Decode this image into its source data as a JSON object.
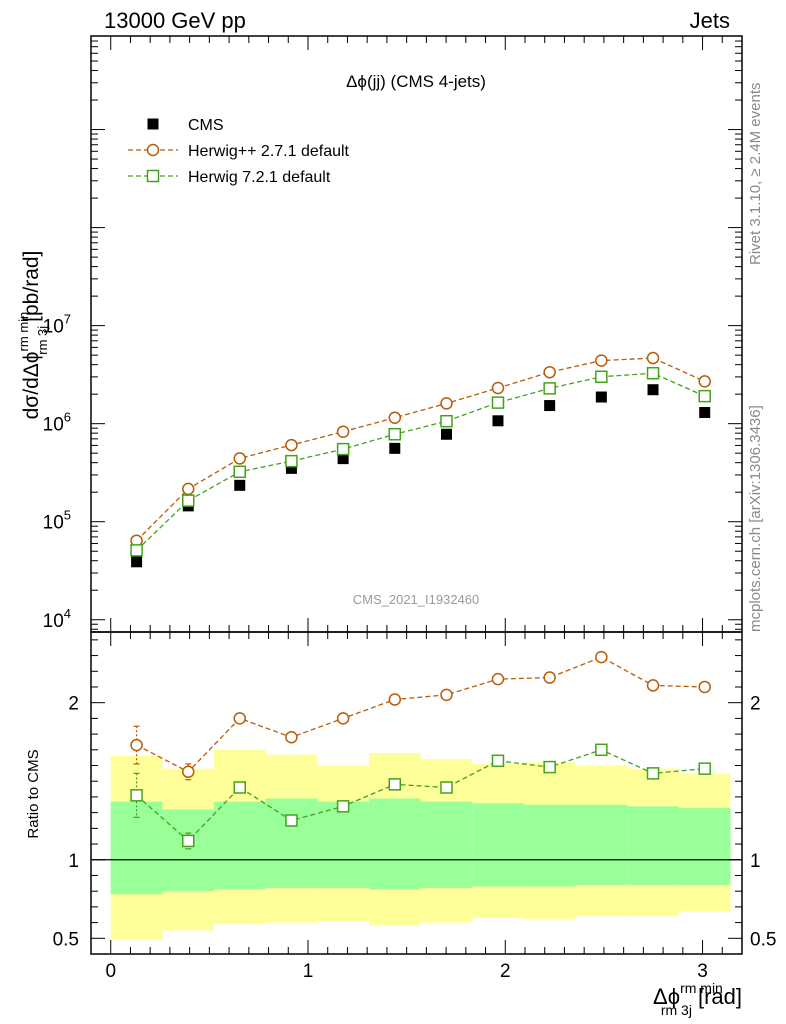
{
  "header": {
    "left": "13000 GeV pp",
    "right": "Jets"
  },
  "side_labels": {
    "rivet": "Rivet 3.1.10, ≥ 2.4M events",
    "mcplots": "mcplots.cern.ch [arXiv:1306.3436]"
  },
  "chart_data": [
    {
      "type": "scatter",
      "title": "Δϕ(jj) (CMS 4-jets)",
      "watermark": "CMS_2021_I1932460",
      "ylabel": {
        "main": "dσ/dΔϕ",
        "sup": "rm min",
        "sub": "rm 3j",
        "unit": "[pb/rad]"
      },
      "yscale": "log",
      "xlim": [
        -0.1,
        3.2
      ],
      "ylim": [
        7500,
        9000000000
      ],
      "yticks": [
        {
          "value": 10000,
          "mantissa": "10",
          "exp": "4"
        },
        {
          "value": 100000,
          "mantissa": "10",
          "exp": "5"
        },
        {
          "value": 1000000,
          "mantissa": "10",
          "exp": "6"
        },
        {
          "value": 10000000,
          "mantissa": "10",
          "exp": "7"
        }
      ],
      "legend_position": "top-left",
      "x": [
        0.131,
        0.393,
        0.654,
        0.916,
        1.178,
        1.44,
        1.702,
        1.963,
        2.225,
        2.487,
        2.749,
        3.011
      ],
      "series": [
        {
          "name": "CMS",
          "marker": "square-filled",
          "color": "#000000",
          "values": [
            39000,
            145000,
            235000,
            350000,
            440000,
            560000,
            780000,
            1070000,
            1530000,
            1870000,
            2220000,
            1300000
          ]
        },
        {
          "name": "Herwig++ 2.7.1 default",
          "marker": "circle-open",
          "color": "#b85c0a",
          "values": [
            64000,
            216000,
            442000,
            605000,
            828000,
            1150000,
            1610000,
            2310000,
            3350000,
            4400000,
            4670000,
            2700000
          ]
        },
        {
          "name": "Herwig 7.2.1 default",
          "marker": "square-open",
          "color": "#44a21c",
          "values": [
            51000,
            164000,
            323000,
            415000,
            550000,
            780000,
            1060000,
            1640000,
            2290000,
            3010000,
            3270000,
            1910000
          ]
        }
      ]
    },
    {
      "type": "scatter",
      "ylabel": "Ratio to CMS",
      "xlabel": {
        "main": "Δϕ",
        "sup": "rm min",
        "sub": "rm 3j",
        "unit": "[rad]"
      },
      "xlim": [
        -0.1,
        3.2
      ],
      "ylim": [
        0.4,
        2.45
      ],
      "xticks": [
        "0",
        "1",
        "2",
        "3"
      ],
      "yticks": [
        {
          "value": 0.5,
          "label": "0.5"
        },
        {
          "value": 1,
          "label": "1"
        },
        {
          "value": 2,
          "label": "2"
        }
      ],
      "bin_edges": [
        0,
        0.262,
        0.524,
        0.785,
        1.047,
        1.309,
        1.571,
        1.833,
        2.094,
        2.356,
        2.618,
        2.88,
        3.142
      ],
      "band_outer": {
        "color": "#ffff99",
        "lower": [
          0.49,
          0.55,
          0.59,
          0.6,
          0.61,
          0.58,
          0.6,
          0.63,
          0.62,
          0.64,
          0.64,
          0.67
        ],
        "upper": [
          1.66,
          1.58,
          1.7,
          1.67,
          1.6,
          1.68,
          1.64,
          1.61,
          1.62,
          1.6,
          1.58,
          1.55
        ]
      },
      "band_inner": {
        "color": "#99ff99",
        "lower": [
          0.78,
          0.8,
          0.81,
          0.82,
          0.82,
          0.81,
          0.82,
          0.83,
          0.83,
          0.84,
          0.84,
          0.84
        ],
        "upper": [
          1.37,
          1.32,
          1.37,
          1.39,
          1.37,
          1.39,
          1.37,
          1.36,
          1.35,
          1.35,
          1.34,
          1.33
        ]
      },
      "series": [
        {
          "name": "Herwig++ 2.7.1 default",
          "marker": "circle-open",
          "color": "#b85c0a",
          "values": [
            1.73,
            1.56,
            1.9,
            1.78,
            1.9,
            2.02,
            2.05,
            2.15,
            2.16,
            2.29,
            2.11,
            2.1
          ],
          "err": [
            0.12,
            0.05,
            0.02,
            0.02,
            0.02,
            0.02,
            0.02,
            0.02,
            0.02,
            0.02,
            0.02,
            0.02
          ]
        },
        {
          "name": "Herwig 7.2.1 default",
          "marker": "square-open",
          "color": "#44a21c",
          "values": [
            1.41,
            1.12,
            1.46,
            1.25,
            1.34,
            1.48,
            1.46,
            1.63,
            1.59,
            1.7,
            1.55,
            1.58
          ],
          "err": [
            0.14,
            0.05,
            0.03,
            0.02,
            0.02,
            0.02,
            0.02,
            0.02,
            0.02,
            0.02,
            0.02,
            0.02
          ]
        }
      ]
    }
  ]
}
